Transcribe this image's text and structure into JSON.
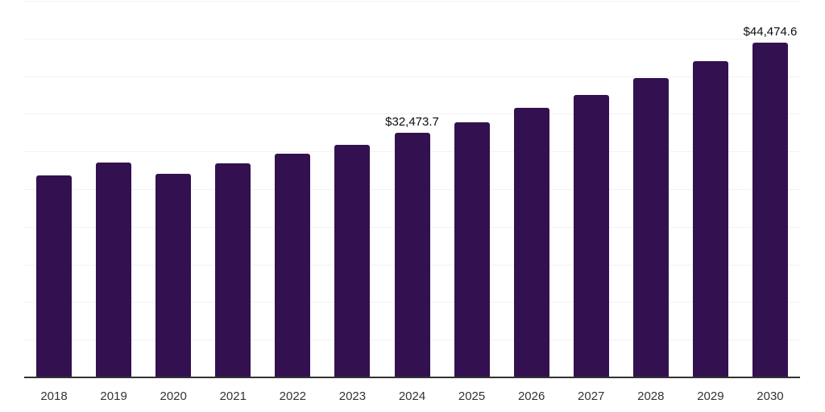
{
  "chart_data": {
    "type": "bar",
    "categories": [
      "2018",
      "2019",
      "2020",
      "2021",
      "2022",
      "2023",
      "2024",
      "2025",
      "2026",
      "2027",
      "2028",
      "2029",
      "2030"
    ],
    "values": [
      26800,
      28500,
      27050,
      28400,
      29700,
      30900,
      32473.7,
      33850,
      35800,
      37500,
      39750,
      42000,
      44474.6
    ],
    "data_labels": [
      {
        "category": "2024",
        "index": 6,
        "text": "$32,473.7"
      },
      {
        "category": "2030",
        "index": 12,
        "text": "$44,474.6"
      }
    ],
    "title": "",
    "xlabel": "",
    "ylabel": "",
    "ylim": [
      0,
      50000
    ],
    "gridline_step": 5000,
    "grid": true,
    "legend": false,
    "y_axis_labels_visible": false,
    "colors": {
      "bar": "#331150",
      "gridline": "#f2f2f2",
      "axis_line": "#333333",
      "x_label": "#333333",
      "data_label": "#0d0d0d",
      "background": "#ffffff"
    }
  }
}
